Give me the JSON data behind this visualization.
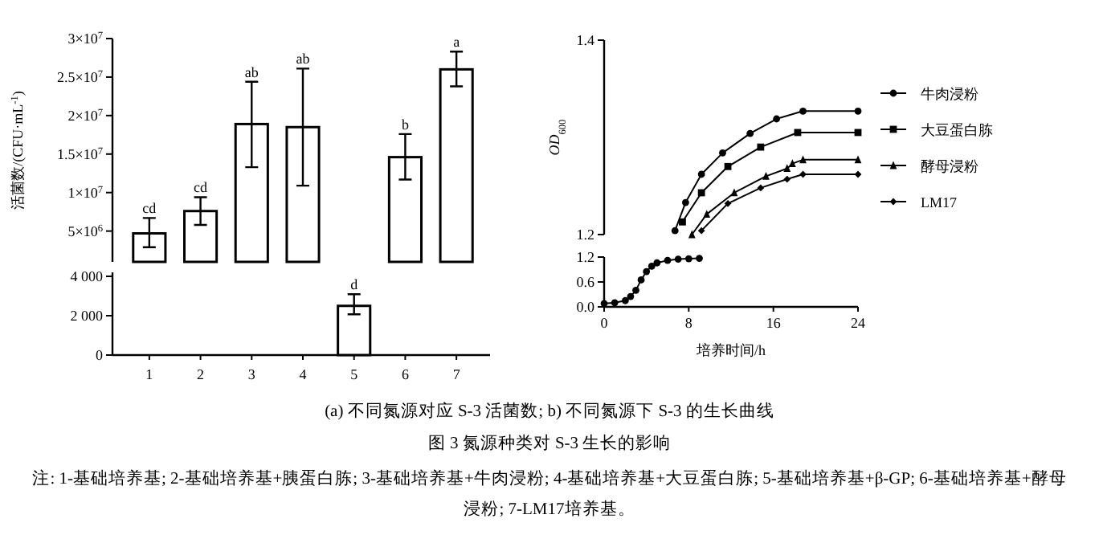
{
  "chart_data": [
    {
      "type": "bar",
      "categories": [
        "1",
        "2",
        "3",
        "4",
        "5",
        "6",
        "7"
      ],
      "color": "#000000",
      "ylabel": "活菌数/(CFU·mL$^{-1}$)",
      "tick_labels": "y",
      "values": [
        4700000,
        7600000,
        18900000,
        18500000,
        null,
        14600000,
        26000000
      ],
      "errors": [
        [
          2900000,
          6700000
        ],
        [
          5800000,
          9400000
        ],
        [
          13300000,
          24400000
        ],
        [
          10900000,
          26100000
        ],
        null,
        [
          11700000,
          17600000
        ],
        [
          23800000,
          28300000
        ]
      ],
      "ylim": [
        1000000,
        30000000
      ],
      "yticks": [
        {
          "value": 5000000,
          "label": "5×10$^{6}$"
        },
        {
          "value": 10000000,
          "label": "1×10$^{7}$"
        },
        {
          "value": 15000000,
          "label": "1.5×10$^{7}$"
        },
        {
          "value": 20000000,
          "label": "2×10$^{7}$"
        },
        {
          "value": 25000000,
          "label": "2.5×10$^{7}$"
        },
        {
          "value": 30000000,
          "label": "3×10$^{7}$"
        }
      ],
      "annotations": [
        {
          "text": "cd",
          "x": "1",
          "y": 6700000
        },
        {
          "text": "cd",
          "x": "2",
          "y": 9400000
        },
        {
          "text": "ab",
          "x": "3",
          "y": 24400000
        },
        {
          "text": "ab",
          "x": "4",
          "y": 26100000
        },
        {
          "text": "b",
          "x": "6",
          "y": 17600000
        },
        {
          "text": "a",
          "x": "7",
          "y": 28300000
        },
        "(a) 不同氮源对应 S-3 活菌数; b) 不同氮源下 S-3 的生长曲线",
        "图 3   氮源种类对 S-3 生长的影响",
        "注: 1-基础培养基; 2-基础培养基+胰蛋白胨; 3-基础培养基+牛肉浸粉; 4-基础培养基+大豆蛋白胨; 5-基础培养基+β-GP; 6-基础培养基+酵母浸粉; 7-LM17培养基。"
      ]
    },
    {
      "type": "bar",
      "categories": [
        "1",
        "2",
        "3",
        "4",
        "5",
        "6",
        "7"
      ],
      "color": "#000000",
      "values": [
        null,
        null,
        null,
        null,
        2500,
        null,
        null
      ],
      "errors": [
        null,
        null,
        null,
        null,
        [
          2070,
          3090
        ],
        null,
        null
      ],
      "ylim": [
        0,
        4200
      ],
      "yticks": [
        0,
        {
          "value": 2000,
          "label": "2 000"
        },
        {
          "value": 4000,
          "label": "4 000"
        }
      ],
      "annotations": [
        {
          "text": "d",
          "x": "5",
          "y": 3090
        }
      ]
    },
    {
      "type": "line",
      "xlim": [
        0,
        24
      ],
      "ylim": [
        1.2,
        1.4
      ],
      "yticks": [
        1.2,
        1.4
      ],
      "tick_labels": "y",
      "legend": "right",
      "ylabel": "*OD*$_{600}$",
      "series": [
        {
          "name": "牛肉浸粉",
          "color": "#000000",
          "marker": "circle",
          "x": [
            6.7,
            7.7,
            9.2,
            11.2,
            13.8,
            16.3,
            18.8,
            24
          ],
          "values": [
            1.204,
            1.233,
            1.262,
            1.284,
            1.304,
            1.319,
            1.327,
            1.327
          ]
        },
        {
          "name": "大豆蛋白胨",
          "color": "#000000",
          "marker": "square",
          "x": [
            7.4,
            9.2,
            11.7,
            14.8,
            18.3,
            24
          ],
          "values": [
            1.213,
            1.243,
            1.27,
            1.29,
            1.305,
            1.305
          ]
        },
        {
          "name": "酵母浸粉",
          "color": "#000000",
          "marker": "triangle",
          "x": [
            8.3,
            9.7,
            12.3,
            15.3,
            17.3,
            17.8,
            18.8,
            24
          ],
          "values": [
            1.2,
            1.221,
            1.243,
            1.26,
            1.268,
            1.273,
            1.277,
            1.277
          ]
        },
        {
          "name": "LM17",
          "color": "#000000",
          "marker": "diamond",
          "x": [
            9.2,
            11.7,
            14.8,
            17.3,
            18.8,
            24
          ],
          "values": [
            1.204,
            1.232,
            1.248,
            1.257,
            1.262,
            1.262
          ]
        }
      ]
    },
    {
      "type": "line",
      "xlim": [
        0,
        24
      ],
      "xticks": [
        0,
        8,
        16,
        24
      ],
      "ylim": [
        0,
        1.2
      ],
      "yticks": [
        {
          "value": 0,
          "label": "0.0"
        },
        {
          "value": 0.6,
          "label": "0.6"
        },
        {
          "value": 1.2,
          "label": "1.2"
        }
      ],
      "xlabel": "培养时间/h",
      "series": [
        {
          "color": "#000000",
          "marker": "circle",
          "x": [
            0,
            1,
            2,
            2.5,
            3,
            3.5,
            4,
            4.5,
            5,
            6,
            7,
            8,
            9
          ],
          "values": [
            0.08,
            0.1,
            0.15,
            0.25,
            0.4,
            0.65,
            0.85,
            0.98,
            1.06,
            1.12,
            1.15,
            1.16,
            1.17
          ]
        }
      ]
    }
  ]
}
